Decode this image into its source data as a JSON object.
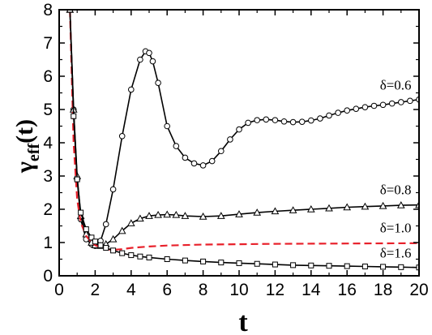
{
  "chart_data": {
    "type": "line",
    "xlabel": "t",
    "ylabel_main": "γ",
    "ylabel_sub": "eff",
    "ylabel_tail": "(t)",
    "xlim": [
      0,
      20
    ],
    "ylim": [
      0,
      8
    ],
    "xticks": [
      0,
      2,
      4,
      6,
      8,
      10,
      12,
      14,
      16,
      18,
      20
    ],
    "yticks": [
      0,
      1,
      2,
      3,
      4,
      5,
      6,
      7,
      8
    ],
    "grid": false,
    "colors": {
      "axis": "#000000",
      "dashed": "#e8202a",
      "marker_fill": "#ffffff"
    },
    "series": [
      {
        "name": "δ=0.6",
        "style": "solid-circle",
        "x": [
          0.6,
          0.8,
          1.0,
          1.2,
          1.5,
          1.8,
          2.0,
          2.3,
          2.6,
          3.0,
          3.5,
          4.0,
          4.5,
          4.8,
          5.0,
          5.2,
          5.5,
          6.0,
          6.5,
          7.0,
          7.5,
          8.0,
          8.5,
          9.0,
          9.5,
          10.0,
          10.5,
          11.0,
          11.5,
          12.0,
          12.5,
          13.0,
          13.5,
          14.0,
          14.5,
          15.0,
          15.5,
          16.0,
          16.5,
          17.0,
          17.5,
          18.0,
          18.5,
          19.0,
          19.5,
          20.0
        ],
        "y": [
          8.0,
          5.0,
          2.9,
          1.7,
          1.1,
          0.95,
          0.9,
          1.05,
          1.55,
          2.6,
          4.2,
          5.6,
          6.5,
          6.75,
          6.7,
          6.45,
          5.8,
          4.5,
          3.9,
          3.55,
          3.38,
          3.32,
          3.45,
          3.75,
          4.1,
          4.4,
          4.6,
          4.68,
          4.7,
          4.68,
          4.64,
          4.62,
          4.63,
          4.67,
          4.73,
          4.82,
          4.9,
          4.97,
          5.02,
          5.07,
          5.11,
          5.14,
          5.18,
          5.22,
          5.26,
          5.3
        ]
      },
      {
        "name": "δ=0.8",
        "style": "solid-triangle",
        "x": [
          0.6,
          0.8,
          1.0,
          1.2,
          1.5,
          1.8,
          2.0,
          2.3,
          2.6,
          3.0,
          3.5,
          4.0,
          4.5,
          5.0,
          5.5,
          6.0,
          6.5,
          7.0,
          8.0,
          9.0,
          10.0,
          11.0,
          12.0,
          13.0,
          14.0,
          15.0,
          16.0,
          17.0,
          18.0,
          19.0,
          20.0
        ],
        "y": [
          8.0,
          5.0,
          3.0,
          1.8,
          1.25,
          1.0,
          0.92,
          0.9,
          0.95,
          1.1,
          1.35,
          1.58,
          1.72,
          1.8,
          1.83,
          1.84,
          1.83,
          1.8,
          1.78,
          1.8,
          1.85,
          1.9,
          1.94,
          1.97,
          2.0,
          2.03,
          2.06,
          2.08,
          2.1,
          2.12,
          2.13
        ]
      },
      {
        "name": "δ=1.0",
        "style": "dashed",
        "x": [
          0.6,
          0.8,
          1.0,
          1.2,
          1.5,
          1.8,
          2.0,
          2.3,
          2.6,
          3.0,
          3.5,
          4.0,
          5.0,
          6.0,
          8.0,
          10.0,
          12.0,
          14.0,
          16.0,
          18.0,
          20.0
        ],
        "y": [
          8.0,
          4.0,
          2.3,
          1.6,
          1.2,
          1.0,
          0.92,
          0.85,
          0.8,
          0.78,
          0.8,
          0.84,
          0.88,
          0.91,
          0.94,
          0.95,
          0.96,
          0.965,
          0.97,
          0.975,
          0.98
        ]
      },
      {
        "name": "δ=1.6",
        "style": "solid-square",
        "x": [
          0.6,
          0.8,
          1.0,
          1.2,
          1.5,
          1.8,
          2.0,
          2.3,
          2.6,
          3.0,
          3.5,
          4.0,
          4.5,
          5.0,
          6.0,
          7.0,
          8.0,
          9.0,
          10.0,
          11.0,
          12.0,
          13.0,
          14.0,
          15.0,
          16.0,
          17.0,
          18.0,
          19.0,
          20.0
        ],
        "y": [
          8.0,
          4.8,
          2.9,
          1.9,
          1.4,
          1.15,
          1.03,
          0.92,
          0.84,
          0.76,
          0.68,
          0.62,
          0.58,
          0.55,
          0.5,
          0.46,
          0.43,
          0.4,
          0.38,
          0.36,
          0.34,
          0.32,
          0.31,
          0.3,
          0.29,
          0.28,
          0.27,
          0.26,
          0.25
        ]
      }
    ],
    "annotations": [
      {
        "text": "δ=0.6",
        "x": 18.7,
        "y": 5.6
      },
      {
        "text": "δ=0.8",
        "x": 18.7,
        "y": 2.45
      },
      {
        "text": "δ=1.0",
        "x": 18.7,
        "y": 1.3
      },
      {
        "text": "δ=1.6",
        "x": 18.7,
        "y": 0.55
      }
    ]
  }
}
